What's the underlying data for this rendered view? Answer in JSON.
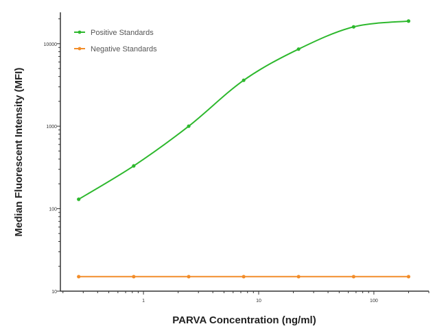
{
  "chart_data": {
    "type": "line",
    "title": "",
    "xlabel": "PARVA Concentration (ng/ml)",
    "ylabel": "Median  Fluorescent Intensity  (MFI)",
    "x_scale": "log",
    "y_scale": "log",
    "xlim": [
      0.19,
      300
    ],
    "ylim": [
      10,
      24000
    ],
    "x_ticks": [
      "1",
      "10",
      "100"
    ],
    "y_ticks": [
      "10",
      "100",
      "1000",
      "10000"
    ],
    "grid": false,
    "legend_position": "top-left",
    "x": [
      0.274,
      0.823,
      2.47,
      7.41,
      22.2,
      66.7,
      200
    ],
    "series": [
      {
        "name": "Positive Standards",
        "color": "#2db82d",
        "values": [
          130,
          330,
          1000,
          3600,
          8600,
          16000,
          18800
        ],
        "fit": "sigmoidal curve"
      },
      {
        "name": "Negative Standards",
        "color": "#f28c28",
        "values": [
          15,
          15,
          15,
          15,
          15,
          15,
          15
        ],
        "fit": "line"
      }
    ]
  }
}
